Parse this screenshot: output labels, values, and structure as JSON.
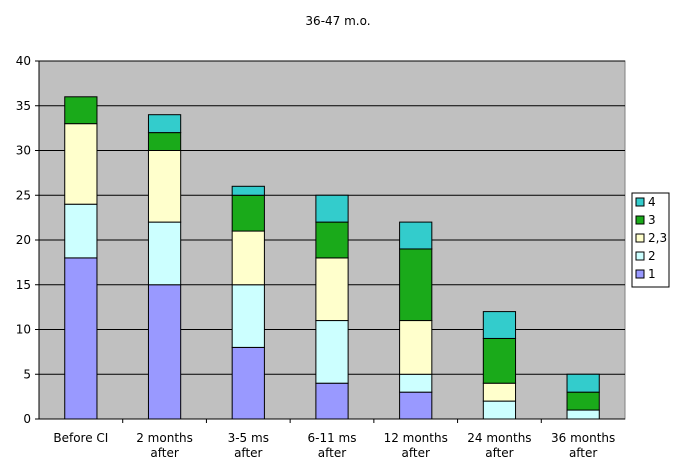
{
  "chart_data": {
    "type": "bar",
    "stacked": true,
    "title": "36-47 m.o.",
    "xlabel": "",
    "ylabel": "",
    "categories": [
      [
        "Before CI"
      ],
      [
        "2 months",
        "after"
      ],
      [
        "3-5 ms",
        "after"
      ],
      [
        "6-11 ms",
        "after"
      ],
      [
        "12 months",
        "after"
      ],
      [
        "24 months",
        "after"
      ],
      [
        "36 months",
        "after"
      ]
    ],
    "series": [
      {
        "name": "1",
        "color": "#9999ff",
        "values": [
          18,
          15,
          8,
          4,
          3,
          0,
          0
        ]
      },
      {
        "name": "2",
        "color": "#ccffff",
        "values": [
          6,
          7,
          7,
          7,
          2,
          2,
          1
        ]
      },
      {
        "name": "2,3",
        "color": "#ffffcc",
        "values": [
          9,
          8,
          6,
          7,
          6,
          2,
          0
        ]
      },
      {
        "name": "3",
        "color": "#1aaa1a",
        "values": [
          3,
          2,
          4,
          4,
          8,
          5,
          2
        ]
      },
      {
        "name": "4",
        "color": "#33cccc",
        "values": [
          0,
          2,
          1,
          3,
          3,
          3,
          2
        ]
      }
    ],
    "ylim": [
      0,
      40
    ],
    "yticks": [
      0,
      5,
      10,
      15,
      20,
      25,
      30,
      35,
      40
    ],
    "grid": true,
    "plot_background": "#c0c0c0",
    "legend_position": "right",
    "legend_order": [
      "4",
      "3",
      "2,3",
      "2",
      "1"
    ]
  }
}
